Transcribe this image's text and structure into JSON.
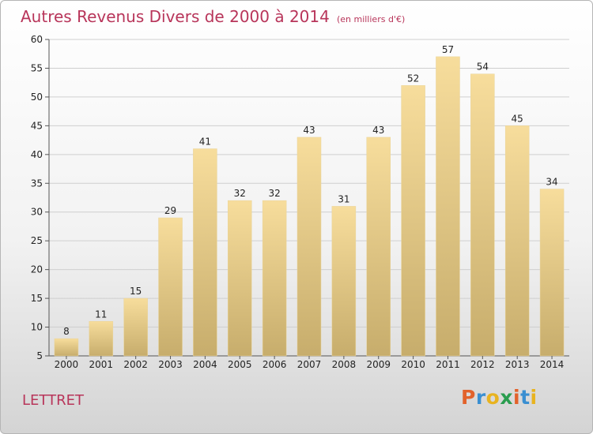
{
  "title": "Autres Revenus Divers de 2000 à 2014",
  "unit_note": "(en milliers d'€)",
  "commune": "LETTRET",
  "logo": {
    "text": "Proxiti",
    "letter_colors": [
      "#e2622b",
      "#3a8fd1",
      "#e8b320",
      "#2a9d4f",
      "#e2622b",
      "#3a8fd1",
      "#e8b320"
    ]
  },
  "colors": {
    "title": "#b8355a",
    "bar_top": "#f7dd9c",
    "bar_bottom": "#c7ad6c",
    "grid": "#cfcfcf"
  },
  "chart_data": {
    "type": "bar",
    "title": "Autres Revenus Divers de 2000 à 2014",
    "subtitle": "(en milliers d'€)",
    "xlabel": "",
    "ylabel": "",
    "categories": [
      "2000",
      "2001",
      "2002",
      "2003",
      "2004",
      "2005",
      "2006",
      "2007",
      "2008",
      "2009",
      "2010",
      "2011",
      "2012",
      "2013",
      "2014"
    ],
    "values": [
      8,
      11,
      15,
      29,
      41,
      32,
      32,
      43,
      31,
      43,
      52,
      57,
      54,
      45,
      34
    ],
    "ylim": [
      5,
      60
    ],
    "yticks": [
      5,
      10,
      15,
      20,
      25,
      30,
      35,
      40,
      45,
      50,
      55,
      60
    ],
    "grid": true,
    "legend": "none"
  }
}
